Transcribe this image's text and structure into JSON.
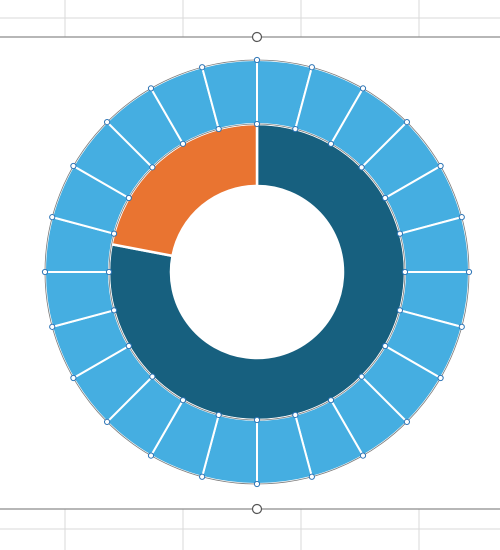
{
  "chart_data": {
    "type": "doughnut",
    "title": "",
    "inner_ring": {
      "series": [
        {
          "name": "",
          "value": 78,
          "color": "#17607f"
        },
        {
          "name": "",
          "value": 22,
          "color": "#e97431"
        }
      ]
    },
    "outer_ring": {
      "segments": 24,
      "value_each": 1,
      "color": "#45aee1",
      "selected": true
    },
    "grid": true,
    "legend": "none"
  }
}
